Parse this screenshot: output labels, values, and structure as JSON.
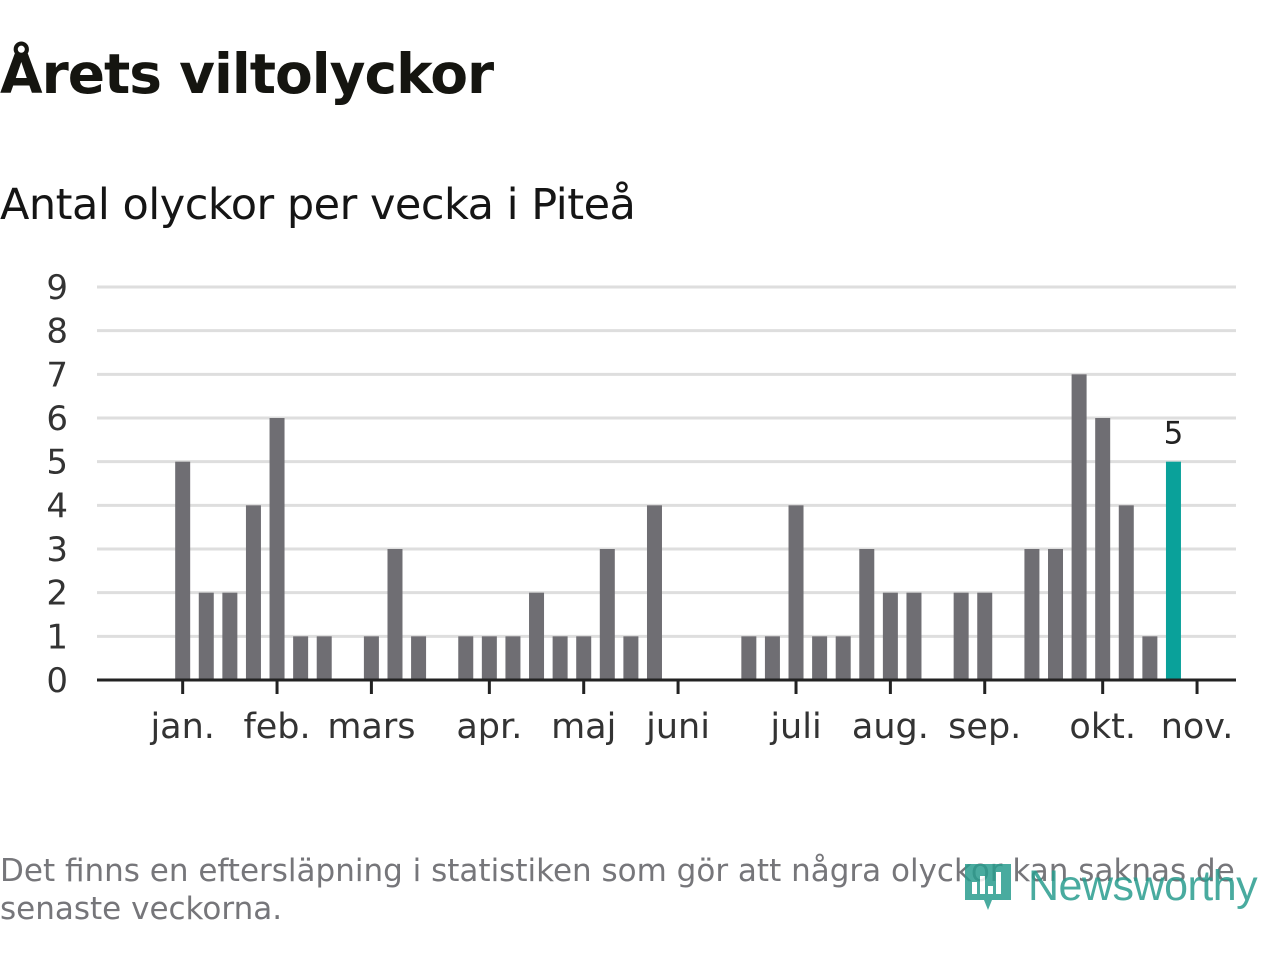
{
  "header": {
    "title": "Årets viltolyckor",
    "subtitle": "Antal olyckor per vecka i Piteå"
  },
  "footer": {
    "note": "Det finns en eftersläpning i statistiken som gör att några olyckor kan saknas de senaste veckorna.",
    "logo_text": "Newsworthy"
  },
  "colors": {
    "bar": "#6f6e73",
    "highlight": "#0aa19a",
    "grid": "#dedede",
    "axis": "#222222",
    "logo": "#2a9d8f"
  },
  "chart_data": {
    "type": "bar",
    "title": "Antal olyckor per vecka i Piteå",
    "ylabel": "",
    "xlabel": "",
    "ylim": [
      0,
      9
    ],
    "yticks": [
      0,
      1,
      2,
      3,
      4,
      5,
      6,
      7,
      8,
      9
    ],
    "grid": true,
    "weeks": [
      1,
      2,
      3,
      4,
      5,
      6,
      7,
      8,
      9,
      10,
      11,
      12,
      13,
      14,
      15,
      16,
      17,
      18,
      19,
      20,
      21,
      22,
      23,
      24,
      25,
      26,
      27,
      28,
      29,
      30,
      31,
      32,
      33,
      34,
      35,
      36,
      37,
      38,
      39,
      40,
      41,
      42,
      43,
      44,
      45,
      46
    ],
    "values": [
      0,
      0,
      5,
      2,
      2,
      4,
      6,
      1,
      1,
      0,
      1,
      3,
      1,
      0,
      1,
      1,
      1,
      2,
      1,
      1,
      3,
      1,
      4,
      0,
      0,
      0,
      1,
      1,
      4,
      1,
      1,
      3,
      2,
      2,
      0,
      2,
      2,
      0,
      3,
      3,
      7,
      6,
      4,
      1,
      5,
      0
    ],
    "highlight_index": 44,
    "highlight_label": "5",
    "month_ticks": [
      {
        "label": "jan.",
        "week": 3
      },
      {
        "label": "feb.",
        "week": 7
      },
      {
        "label": "mars",
        "week": 11
      },
      {
        "label": "apr.",
        "week": 16
      },
      {
        "label": "maj",
        "week": 20
      },
      {
        "label": "juni",
        "week": 24
      },
      {
        "label": "juli",
        "week": 29
      },
      {
        "label": "aug.",
        "week": 33
      },
      {
        "label": "sep.",
        "week": 37
      },
      {
        "label": "okt.",
        "week": 42
      },
      {
        "label": "nov.",
        "week": 46
      }
    ]
  }
}
